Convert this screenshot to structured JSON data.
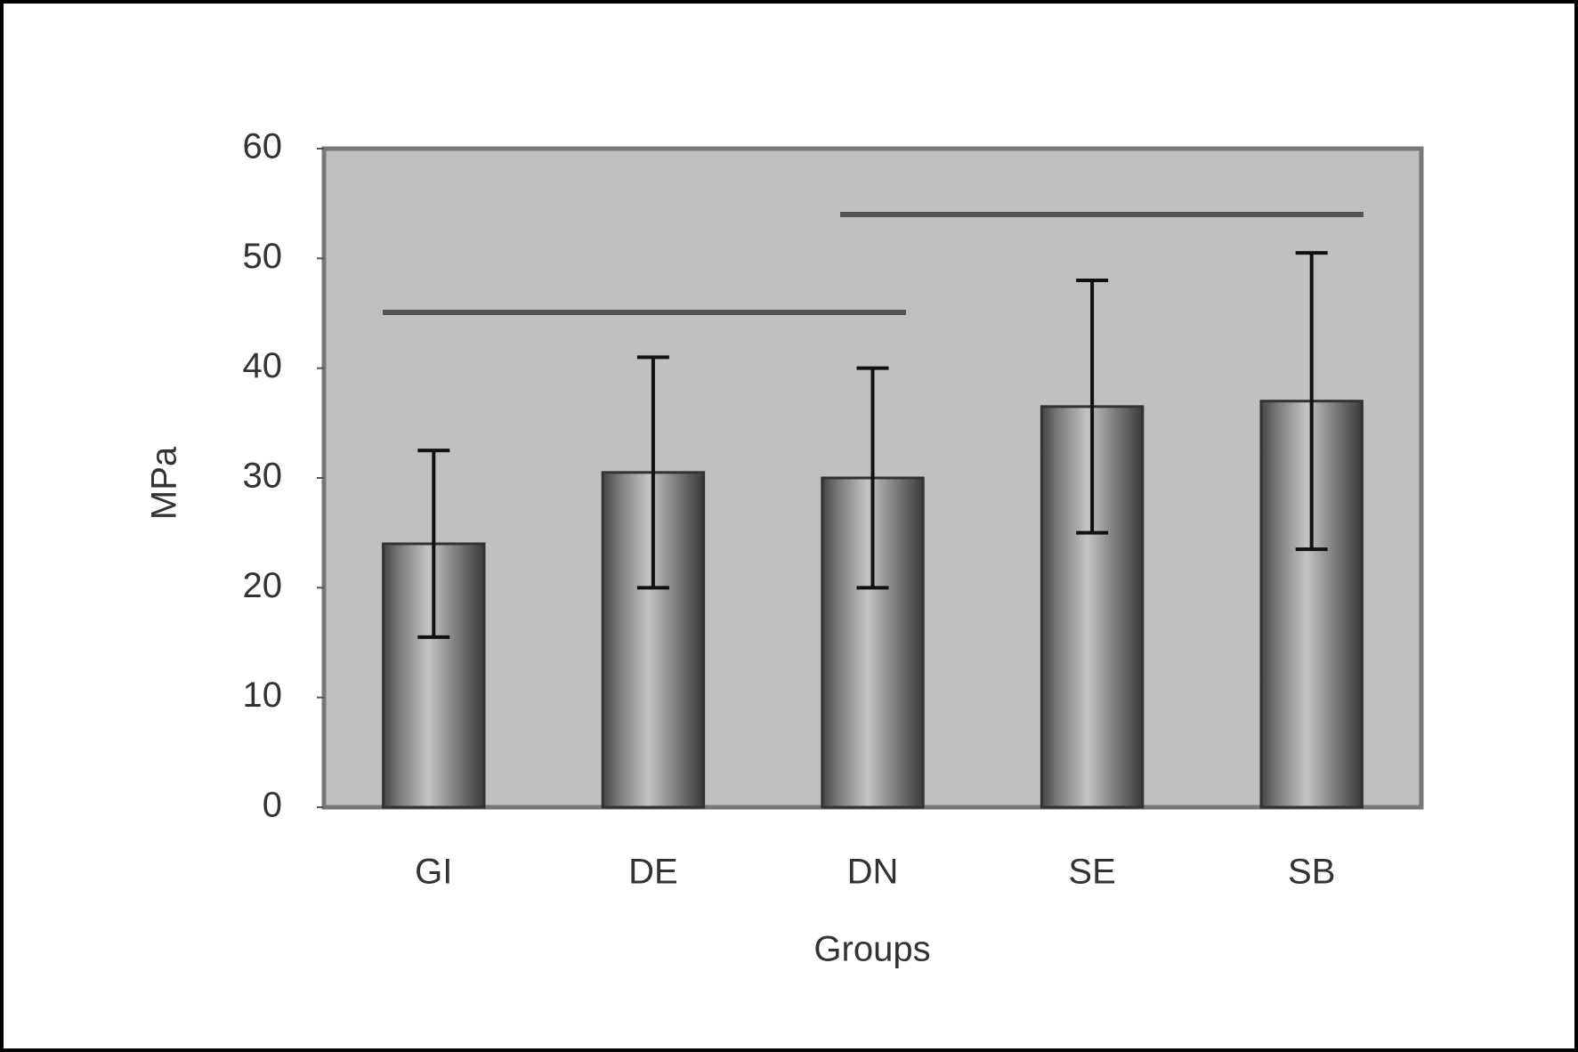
{
  "chart_data": {
    "type": "bar",
    "x_label": "Groups",
    "y_label": "MPa",
    "categories": [
      "GI",
      "DE",
      "DN",
      "SE",
      "SB"
    ],
    "values": [
      24,
      30.5,
      30,
      36.5,
      37
    ],
    "errors": [
      8.5,
      10.5,
      10,
      11.5,
      13.5
    ],
    "color": "#8c8c8c",
    "ylim": [
      0,
      60
    ],
    "yticks": [
      0,
      10,
      20,
      30,
      40,
      50,
      60
    ],
    "grid": false
  }
}
